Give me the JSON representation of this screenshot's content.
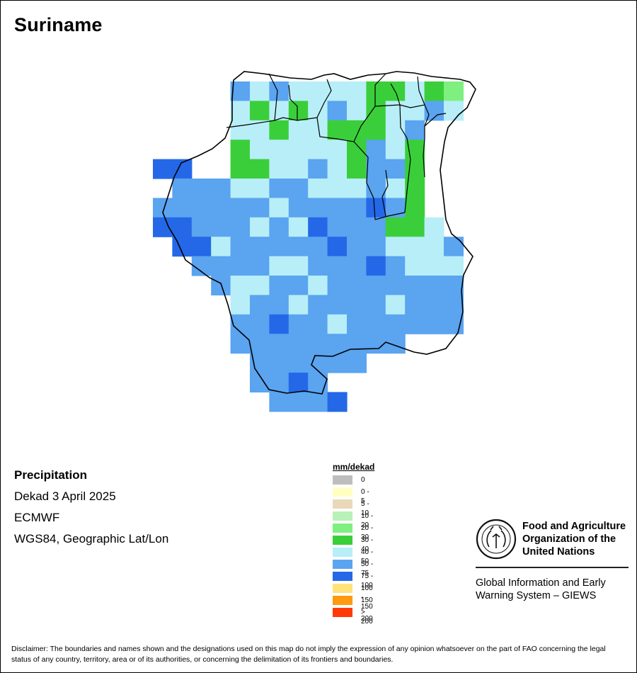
{
  "title": "Suriname",
  "info": {
    "variable": "Precipitation",
    "period": "Dekad 3 April 2025",
    "source": "ECMWF",
    "projection": "WGS84, Geographic Lat/Lon"
  },
  "legend": {
    "title": "mm/dekad",
    "classes": [
      {
        "label": "0",
        "color": "#bdbdbd"
      },
      {
        "label": "0 - 5",
        "color": "#ffffc4"
      },
      {
        "label": "5 - 10",
        "color": "#ead8b8"
      },
      {
        "label": "10 - 20",
        "color": "#b8f2b8"
      },
      {
        "label": "20 - 30",
        "color": "#7fef7f"
      },
      {
        "label": "30 - 40",
        "color": "#3acf3a"
      },
      {
        "label": "40 - 50",
        "color": "#b8eef8"
      },
      {
        "label": "50 - 75",
        "color": "#5aa4f0"
      },
      {
        "label": "75 - 100",
        "color": "#2468e8"
      },
      {
        "label": "100 - 150",
        "color": "#ffe27a"
      },
      {
        "label": "150 - 200",
        "color": "#ff9a10"
      },
      {
        "label": "> 200",
        "color": "#ff3a08"
      }
    ]
  },
  "grid_classes": {
    "codes": {
      "C": "30 - 40",
      "G": "20 - 30",
      "L": "40 - 50",
      "M": "50 - 75",
      "D": "75 - 100"
    },
    "rows": [
      "....MLMLLLLCCLCG",
      "....LCLCLMLCLLML",
      "....LLCLLCCCLM..",
      "....CLLLLLCMLC..",
      "DD..CCLLMLCMMC..",
      ".MMMLLMMLLLMLC..",
      "MMMMMMLMMMMDMC..",
      "DDMMMLMLDMMMCCL.",
      ".DDLMMMMMDMMLLLM",
      "..MMMMLLMMMDMLLL",
      "...MLLMMLMMMMMMM",
      "....LMMLMMMMLMMM",
      "....MMDMMLMMMMMM",
      "....MMMMMMMMM...",
      ".....MMMMMM.....",
      ".....MMDM.......",
      "......MMMD......"
    ]
  }
}
